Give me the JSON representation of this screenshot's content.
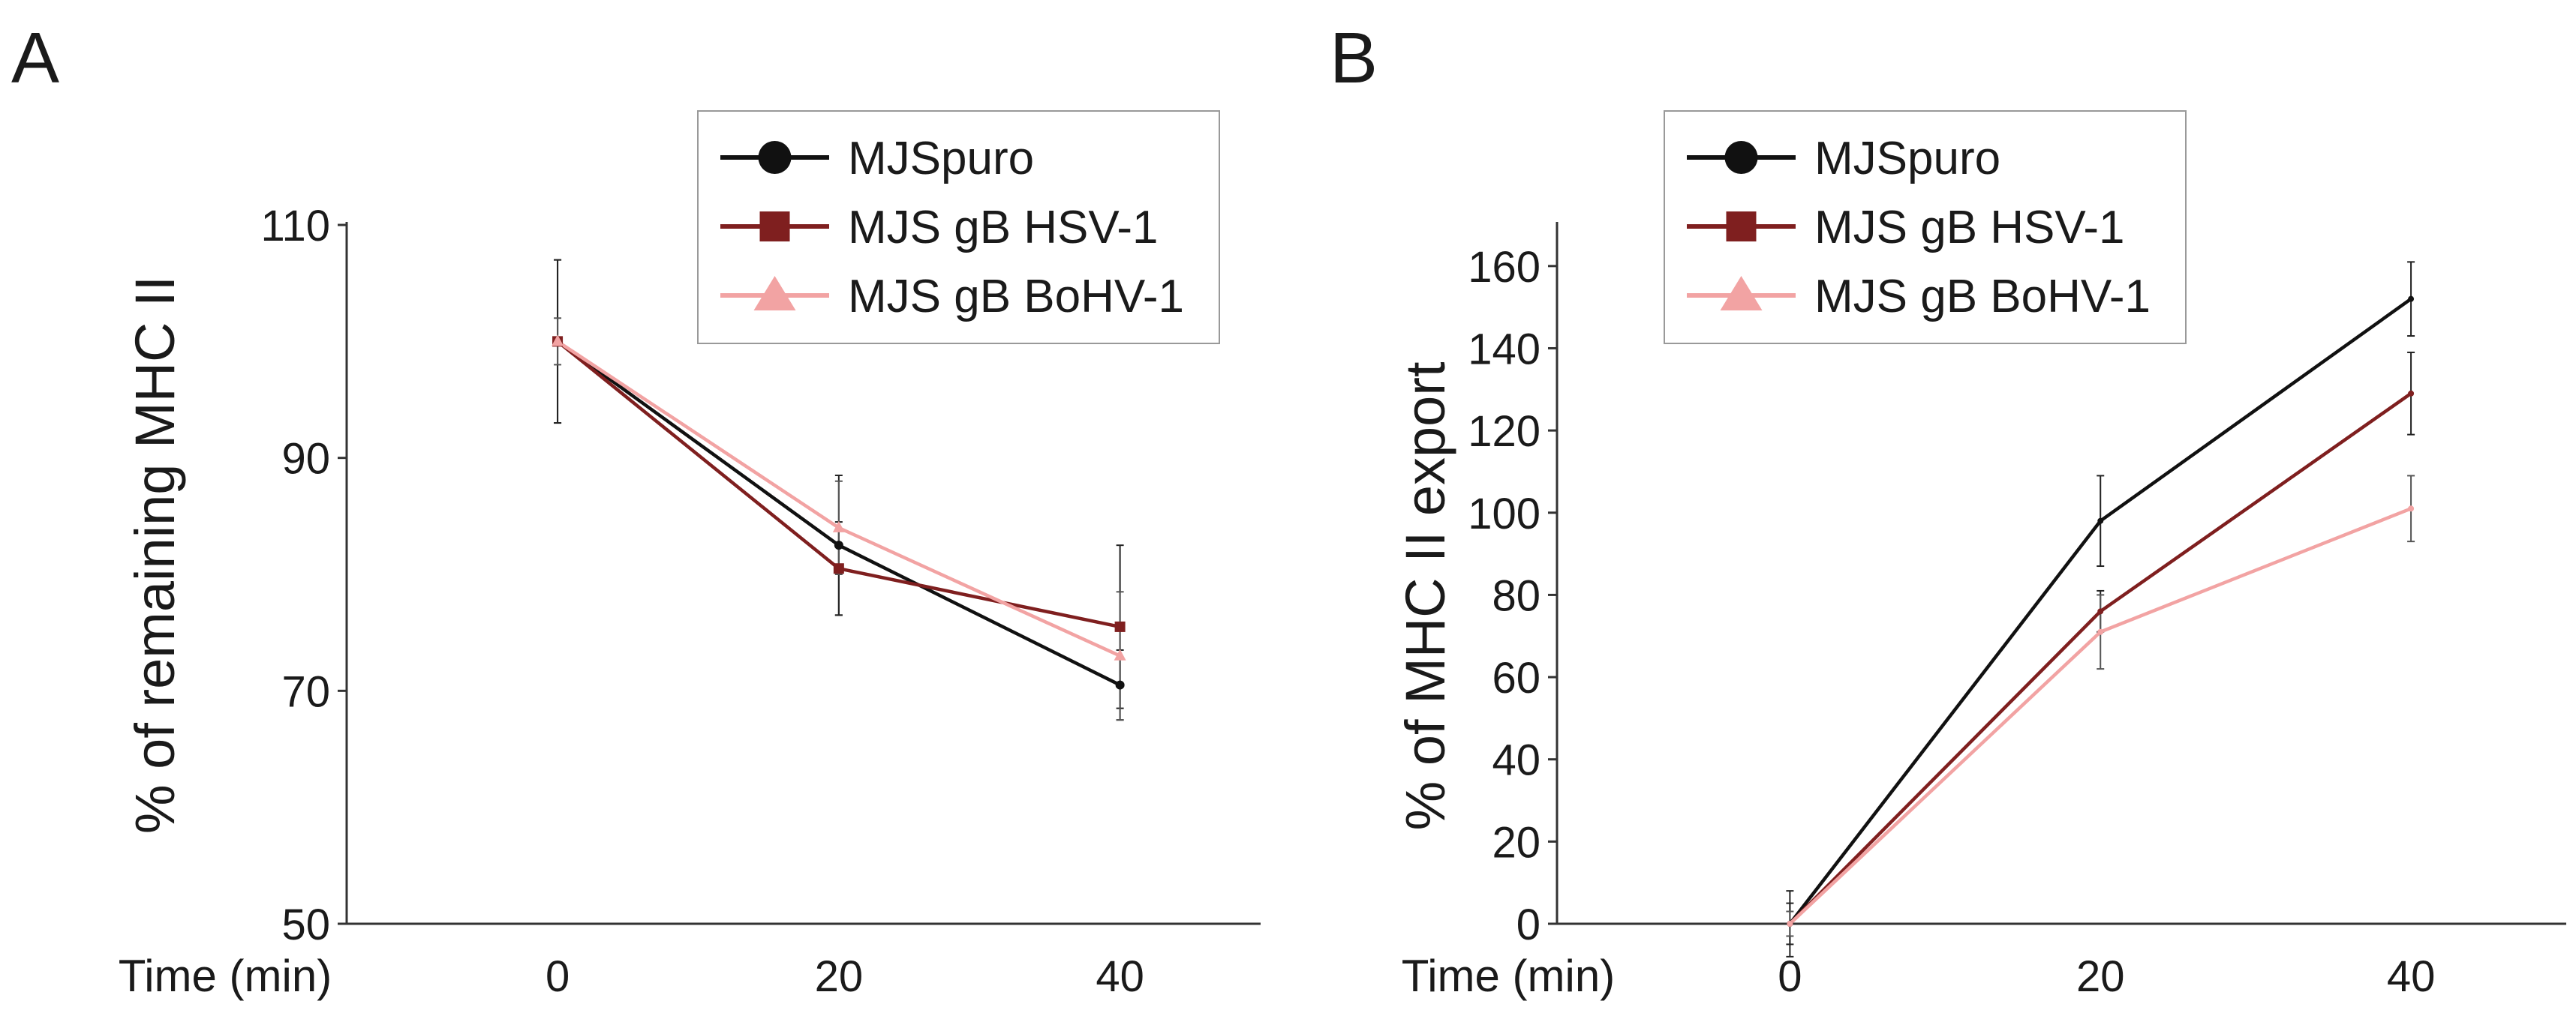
{
  "colors": {
    "MJSpuro": "#111111",
    "MJS gB HSV-1": "#7f1f1f",
    "MJS gB BoHV-1": "#f2a3a3",
    "axis": "#333333"
  },
  "chart_data": [
    {
      "panel_label": "A",
      "type": "line",
      "title": "",
      "xlabel": "Time (min)",
      "ylabel": "% of remaining MHC II",
      "xlim": [
        -15,
        50
      ],
      "ylim": [
        50,
        110
      ],
      "x_ticks": [
        0,
        20,
        40
      ],
      "x_tick_labels": [
        "0",
        "20",
        "40"
      ],
      "y_ticks": [
        50,
        70,
        90,
        110
      ],
      "y_tick_labels": [
        "50",
        "70",
        "90",
        "110"
      ],
      "legend": [
        "MJSpuro",
        "MJS gB HSV-1",
        "MJS gB BoHV-1"
      ],
      "legend_position": "top-right",
      "series": [
        {
          "name": "MJSpuro",
          "marker": "circle",
          "x": [
            0,
            20,
            40
          ],
          "y": [
            100,
            82.5,
            70.5
          ],
          "err": [
            7,
            6,
            3
          ]
        },
        {
          "name": "MJS gB HSV-1",
          "marker": "square",
          "x": [
            0,
            20,
            40
          ],
          "y": [
            100,
            80.5,
            75.5
          ],
          "err": [
            7,
            4,
            7
          ]
        },
        {
          "name": "MJS gB BoHV-1",
          "marker": "triangle",
          "x": [
            0,
            20,
            40
          ],
          "y": [
            100,
            84,
            73
          ],
          "err": [
            2,
            4,
            5.5
          ]
        }
      ]
    },
    {
      "panel_label": "B",
      "type": "line",
      "title": "",
      "xlabel": "Time (min)",
      "ylabel": "% of MHC II export",
      "xlim": [
        -15,
        50
      ],
      "ylim": [
        0,
        170
      ],
      "x_ticks": [
        0,
        20,
        40
      ],
      "x_tick_labels": [
        "0",
        "20",
        "40"
      ],
      "y_ticks": [
        0,
        20,
        40,
        60,
        80,
        100,
        120,
        140,
        160
      ],
      "y_tick_labels": [
        "0",
        "20",
        "40",
        "60",
        "80",
        "100",
        "120",
        "140",
        "160"
      ],
      "legend": [
        "MJSpuro",
        "MJS gB HSV-1",
        "MJS gB BoHV-1"
      ],
      "legend_position": "top-left",
      "series": [
        {
          "name": "MJSpuro",
          "marker": "none",
          "x": [
            0,
            20,
            40
          ],
          "y": [
            0,
            98,
            152
          ],
          "err": [
            8,
            11,
            9
          ]
        },
        {
          "name": "MJS gB HSV-1",
          "marker": "none",
          "x": [
            0,
            20,
            40
          ],
          "y": [
            0,
            76,
            129
          ],
          "err": [
            5,
            5,
            10
          ]
        },
        {
          "name": "MJS gB BoHV-1",
          "marker": "none",
          "x": [
            0,
            20,
            40
          ],
          "y": [
            0,
            71,
            101
          ],
          "err": [
            3,
            9,
            8
          ]
        }
      ]
    }
  ]
}
